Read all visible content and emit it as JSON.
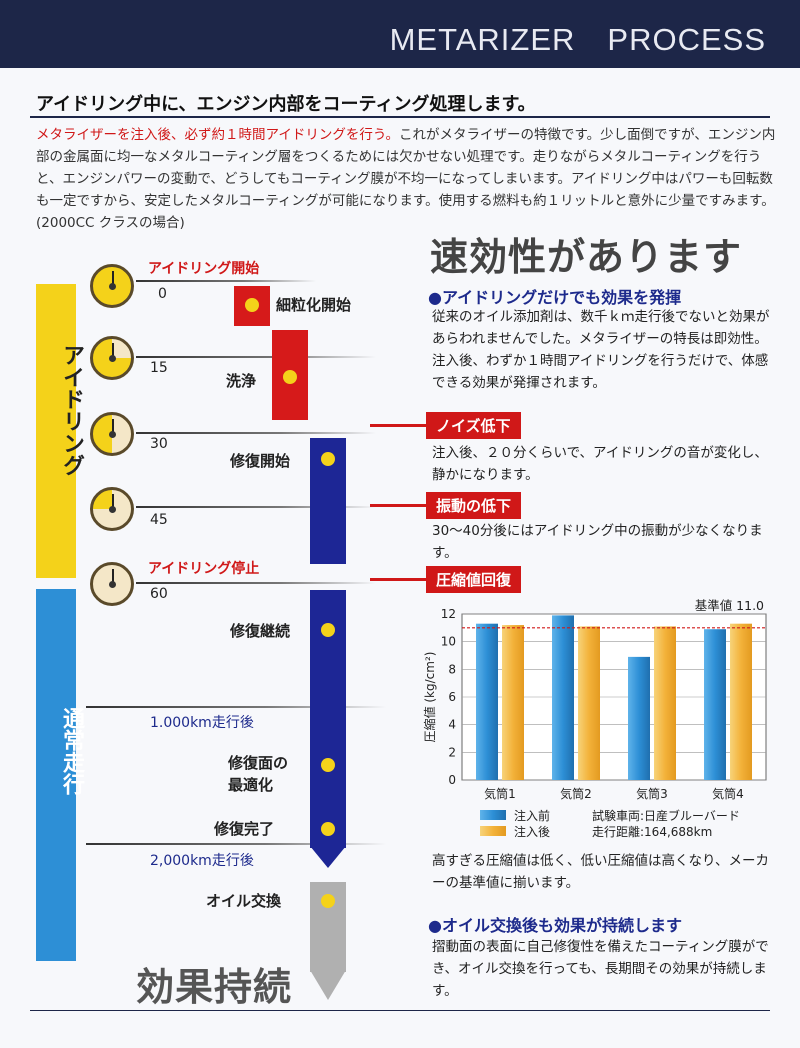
{
  "header": {
    "title": "METARIZER　PROCESS"
  },
  "headline": "アイドリング中に、エンジン内部をコーティング処理します。",
  "intro": {
    "red": "メタライザーを注入後、必ず約１時間アイドリングを行う。",
    "rest": "これがメタライザーの特徴です。少し面倒ですが、エンジン内部の金属面に均一なメタルコーティング層をつくるためには欠かせない処理です。走りながらメタルコーティングを行うと、エンジンパワーの変動で、どうしてもコーティング膜が不均一になってしまいます。アイドリング中はパワーも回転数も一定ですから、安定したメタルコーティングが可能になります。使用する燃料も約１リットルと意外に少量ですみます。(2000CC クラスの場合)"
  },
  "right": {
    "title": "速効性があります",
    "sec1_head": "●アイドリングだけでも効果を発揮",
    "sec1_text": "従来のオイル添加剤は、数千ｋｍ走行後でないと効果があらわれませんでした。メタライザーの特長は即効性。注入後、わずか１時間アイドリングを行うだけで、体感できる効果が発揮されます。",
    "tag1": "ノイズ低下",
    "tag1_text": "注入後、２０分くらいで、アイドリングの音が変化し、静かになります。",
    "tag2": "振動の低下",
    "tag2_text": "30～40分後にはアイドリング中の振動が少なくなります。",
    "tag3": "圧縮値回復",
    "after_chart": "高すぎる圧縮値は低く、低い圧縮値は高くなり、メーカーの基準値に揃います。",
    "sec2_head": "●オイル交換後も効果が持続します",
    "sec2_text": "摺動面の表面に自己修復性を備えたコーティング膜ができ、オイル交換を行っても、長期間その効果が持続します。"
  },
  "timeline": {
    "side_idle": "アイドリング",
    "side_run": "通常走行",
    "idle_start": "アイドリング開始",
    "idle_stop": "アイドリング停止",
    "t0": "0",
    "t15": "15",
    "t30": "30",
    "t45": "45",
    "t60": "60",
    "km1000": "1.000km走行後",
    "km2000": "2,000km走行後",
    "p1": "細粒化開始",
    "p2": "洗浄",
    "p3": "修復開始",
    "p4": "修復継続",
    "p5a": "修復面の",
    "p5b": "最適化",
    "p6": "修復完了",
    "p7": "オイル交換",
    "final": "効果持続"
  },
  "chart_data": {
    "type": "bar",
    "categories": [
      "気筒1",
      "気筒2",
      "気筒3",
      "気筒4"
    ],
    "series": [
      {
        "name": "注入前",
        "color": "#2d8fd6",
        "values": [
          11.3,
          11.9,
          8.9,
          10.9
        ]
      },
      {
        "name": "注入後",
        "color": "#f3b23a",
        "values": [
          11.2,
          11.1,
          11.1,
          11.3
        ]
      }
    ],
    "reference": {
      "label": "基準値 11.0",
      "value": 11.0,
      "color": "#d01818"
    },
    "ylabel": "圧縮値 (kg/cm²)",
    "ylim": [
      0,
      12
    ],
    "yticks": [
      "0",
      "2",
      "4",
      "6",
      "8",
      "10",
      "12"
    ],
    "notes": [
      "試験車両:日産ブルーバード",
      "走行距離:164,688km"
    ]
  }
}
